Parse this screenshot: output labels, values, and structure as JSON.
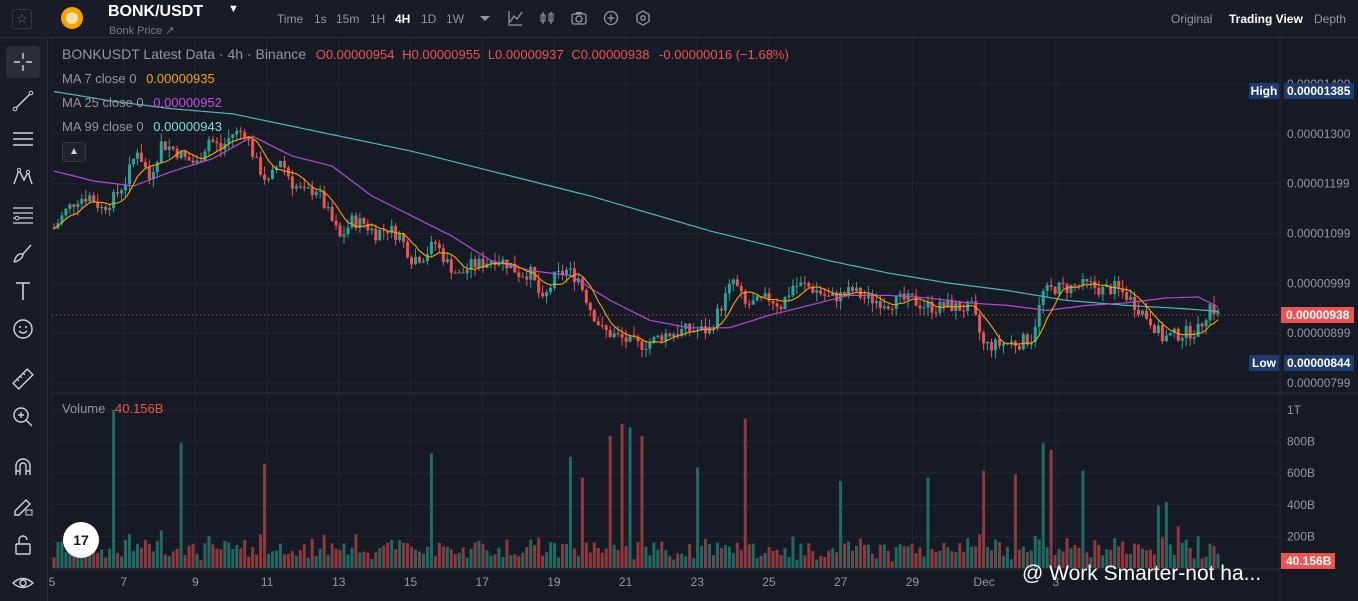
{
  "header": {
    "symbol": "BONK/USDT",
    "subtitle": "Bonk Price ↗",
    "timeframes": [
      "Time",
      "1s",
      "15m",
      "1H",
      "4H",
      "1D",
      "1W"
    ],
    "active_timeframe": "4H",
    "views": [
      "Original",
      "Trading View",
      "Depth"
    ],
    "active_view": "Trading View"
  },
  "legend": {
    "title": "BONKUSDT Latest Data · 4h · Binance",
    "open": "O0.00000954",
    "high": "H0.00000955",
    "low": "L0.00000937",
    "close": "C0.00000938",
    "change": "-0.00000016 (−1.68%)",
    "ma7_label": "MA 7 close 0",
    "ma7_value": "0.00000935",
    "ma25_label": "MA 25 close 0",
    "ma25_value": "0.00000952",
    "ma99_label": "MA 99 close 0",
    "ma99_value": "0.00000943",
    "volume_label": "Volume",
    "volume_value": "40.156B"
  },
  "price_axis": {
    "high_label": "High",
    "high_value": "0.00001385",
    "low_label": "Low",
    "low_value": "0.00000844",
    "current_value": "0.00000938",
    "current_volume": "40.156B"
  },
  "watermark": "@ Work Smarter-not ha...",
  "colors": {
    "up": "#26a69a",
    "down": "#ef5350",
    "ma7": "#f7a600",
    "ma25": "#b54ad8",
    "ma99": "#4fb8b0",
    "background": "#161a25",
    "hl_tag": "#1e3a6e"
  },
  "chart_data": {
    "type": "candlestick",
    "interval": "4h",
    "price_range": [
      7.99e-06,
      1.4e-05
    ],
    "price_ticks": [
      "0.00001400",
      "0.00001300",
      "0.00001199",
      "0.00001099",
      "0.00000999",
      "0.00000899",
      "0.00000799"
    ],
    "volume_ticks": [
      "1T",
      "800B",
      "600B",
      "400B",
      "200B"
    ],
    "x_ticks": [
      "5",
      "7",
      "9",
      "11",
      "13",
      "15",
      "17",
      "19",
      "21",
      "23",
      "25",
      "27",
      "29",
      "Dec",
      "3"
    ],
    "price_anchors": [
      [
        0,
        11.1
      ],
      [
        3,
        11.45
      ],
      [
        6,
        11.7
      ],
      [
        9,
        11.75
      ],
      [
        12,
        11.5
      ],
      [
        15,
        11.7
      ],
      [
        18,
        12.05
      ],
      [
        21,
        12.7
      ],
      [
        24,
        12.1
      ],
      [
        27,
        12.8
      ],
      [
        30,
        12.7
      ],
      [
        33,
        12.5
      ],
      [
        36,
        12.4
      ],
      [
        39,
        12.9
      ],
      [
        42,
        12.7
      ],
      [
        45,
        13.0
      ],
      [
        48,
        13.05
      ],
      [
        51,
        12.4
      ],
      [
        54,
        12.0
      ],
      [
        57,
        12.5
      ],
      [
        60,
        12.0
      ],
      [
        63,
        11.8
      ],
      [
        66,
        11.9
      ],
      [
        69,
        11.4
      ],
      [
        72,
        10.9
      ],
      [
        75,
        11.25
      ],
      [
        78,
        11.2
      ],
      [
        81,
        11.0
      ],
      [
        84,
        11.1
      ],
      [
        87,
        10.95
      ],
      [
        90,
        10.5
      ],
      [
        93,
        10.55
      ],
      [
        96,
        10.8
      ],
      [
        99,
        10.4
      ],
      [
        102,
        10.15
      ],
      [
        105,
        10.35
      ],
      [
        108,
        10.4
      ],
      [
        111,
        10.5
      ],
      [
        114,
        10.4
      ],
      [
        117,
        10.2
      ],
      [
        120,
        10.2
      ],
      [
        123,
        9.6
      ],
      [
        126,
        10.1
      ],
      [
        129,
        10.25
      ],
      [
        132,
        10.1
      ],
      [
        135,
        9.5
      ],
      [
        138,
        9.05
      ],
      [
        141,
        8.95
      ],
      [
        144,
        8.85
      ],
      [
        147,
        8.75
      ],
      [
        150,
        8.8
      ],
      [
        153,
        8.95
      ],
      [
        156,
        9.0
      ],
      [
        159,
        9.05
      ],
      [
        162,
        9.05
      ],
      [
        165,
        9.05
      ],
      [
        168,
        9.55
      ],
      [
        171,
        10.05
      ],
      [
        174,
        9.55
      ],
      [
        177,
        9.6
      ],
      [
        180,
        9.7
      ],
      [
        183,
        9.55
      ],
      [
        186,
        9.95
      ],
      [
        189,
        9.95
      ],
      [
        192,
        9.85
      ],
      [
        195,
        9.7
      ],
      [
        198,
        9.75
      ],
      [
        201,
        9.85
      ],
      [
        204,
        9.7
      ],
      [
        207,
        9.65
      ],
      [
        210,
        9.6
      ],
      [
        213,
        9.65
      ],
      [
        216,
        9.65
      ],
      [
        219,
        9.55
      ],
      [
        222,
        9.5
      ],
      [
        225,
        9.55
      ],
      [
        228,
        9.5
      ],
      [
        231,
        9.5
      ],
      [
        234,
        8.75
      ],
      [
        237,
        8.75
      ],
      [
        240,
        8.8
      ],
      [
        243,
        8.8
      ],
      [
        246,
        8.9
      ],
      [
        249,
        9.8
      ],
      [
        252,
        9.9
      ],
      [
        255,
        9.9
      ],
      [
        258,
        9.95
      ],
      [
        261,
        9.95
      ],
      [
        264,
        9.85
      ],
      [
        267,
        9.9
      ],
      [
        270,
        9.75
      ],
      [
        273,
        9.5
      ],
      [
        276,
        9.25
      ],
      [
        279,
        8.9
      ],
      [
        282,
        8.95
      ],
      [
        285,
        9.0
      ],
      [
        288,
        9.05
      ],
      [
        291,
        9.55
      ],
      [
        293,
        9.38
      ]
    ],
    "ma99_anchors": [
      [
        0,
        13.85
      ],
      [
        15,
        13.65
      ],
      [
        30,
        13.5
      ],
      [
        45,
        13.4
      ],
      [
        60,
        13.15
      ],
      [
        75,
        12.9
      ],
      [
        90,
        12.65
      ],
      [
        105,
        12.35
      ],
      [
        120,
        12.05
      ],
      [
        135,
        11.75
      ],
      [
        150,
        11.4
      ],
      [
        165,
        11.05
      ],
      [
        180,
        10.75
      ],
      [
        195,
        10.45
      ],
      [
        210,
        10.2
      ],
      [
        225,
        10.0
      ],
      [
        240,
        9.85
      ],
      [
        255,
        9.65
      ],
      [
        270,
        9.55
      ],
      [
        285,
        9.48
      ],
      [
        293,
        9.43
      ]
    ],
    "ma25_anchors": [
      [
        0,
        12.25
      ],
      [
        10,
        12.05
      ],
      [
        20,
        11.95
      ],
      [
        30,
        12.25
      ],
      [
        40,
        12.5
      ],
      [
        50,
        12.95
      ],
      [
        60,
        12.55
      ],
      [
        70,
        12.35
      ],
      [
        80,
        11.75
      ],
      [
        90,
        11.35
      ],
      [
        100,
        10.95
      ],
      [
        110,
        10.45
      ],
      [
        120,
        10.25
      ],
      [
        130,
        10.15
      ],
      [
        140,
        9.65
      ],
      [
        150,
        9.25
      ],
      [
        160,
        9.1
      ],
      [
        170,
        9.1
      ],
      [
        180,
        9.35
      ],
      [
        190,
        9.55
      ],
      [
        200,
        9.75
      ],
      [
        210,
        9.75
      ],
      [
        220,
        9.7
      ],
      [
        230,
        9.6
      ],
      [
        240,
        9.55
      ],
      [
        250,
        9.45
      ],
      [
        260,
        9.55
      ],
      [
        270,
        9.6
      ],
      [
        280,
        9.7
      ],
      [
        288,
        9.72
      ],
      [
        293,
        9.52
      ]
    ],
    "volume_bar_count": 294,
    "volume_range_billions": [
      0,
      1000
    ]
  }
}
